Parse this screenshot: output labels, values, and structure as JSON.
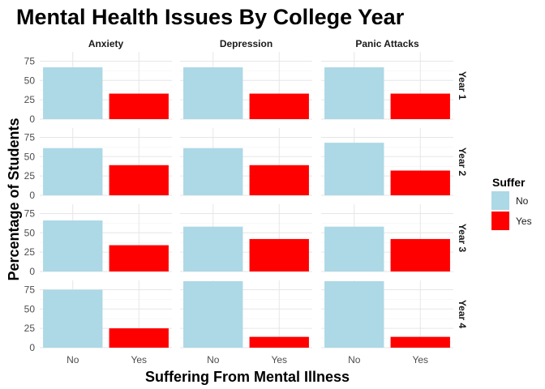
{
  "chart_data": {
    "type": "bar",
    "title": "Mental Health Issues By College Year",
    "xlabel": "Suffering From Mental Illness",
    "ylabel": "Percentage of Students",
    "categories": [
      "No",
      "Yes"
    ],
    "ylim": [
      0,
      87
    ],
    "yticks": [
      "0",
      "25",
      "50",
      "75"
    ],
    "grid": true,
    "legend": {
      "title": "Suffer",
      "position": "right",
      "entries": [
        {
          "label": "No",
          "color": "#ADD8E6"
        },
        {
          "label": "Yes",
          "color": "#FF0000"
        }
      ]
    },
    "facet_columns": [
      "Anxiety",
      "Depression",
      "Panic Attacks"
    ],
    "facet_rows": [
      "Year 1",
      "Year 2",
      "Year 3",
      "Year 4"
    ],
    "panels": [
      {
        "row": "Year 1",
        "col": "Anxiety",
        "values": [
          67,
          33
        ]
      },
      {
        "row": "Year 1",
        "col": "Depression",
        "values": [
          67,
          33
        ]
      },
      {
        "row": "Year 1",
        "col": "Panic Attacks",
        "values": [
          67,
          33
        ]
      },
      {
        "row": "Year 2",
        "col": "Anxiety",
        "values": [
          61,
          39
        ]
      },
      {
        "row": "Year 2",
        "col": "Depression",
        "values": [
          61,
          39
        ]
      },
      {
        "row": "Year 2",
        "col": "Panic Attacks",
        "values": [
          68,
          32
        ]
      },
      {
        "row": "Year 3",
        "col": "Anxiety",
        "values": [
          66,
          34
        ]
      },
      {
        "row": "Year 3",
        "col": "Depression",
        "values": [
          58,
          42
        ]
      },
      {
        "row": "Year 3",
        "col": "Panic Attacks",
        "values": [
          58,
          42
        ]
      },
      {
        "row": "Year 4",
        "col": "Anxiety",
        "values": [
          75,
          25
        ]
      },
      {
        "row": "Year 4",
        "col": "Depression",
        "values": [
          86,
          14
        ]
      },
      {
        "row": "Year 4",
        "col": "Panic Attacks",
        "values": [
          86,
          14
        ]
      }
    ]
  }
}
